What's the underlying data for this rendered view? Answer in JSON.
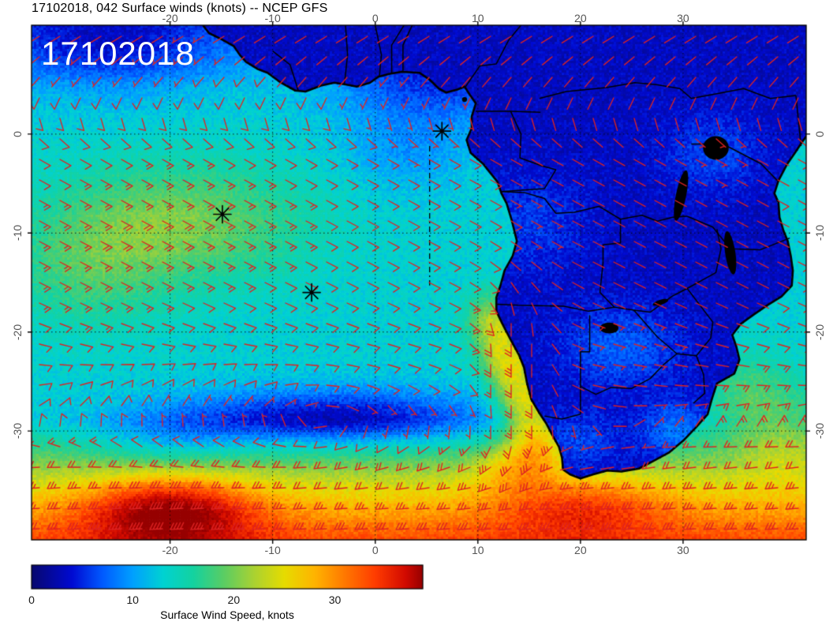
{
  "title": "17102018, 042 Surface winds (knots) -- NCEP GFS",
  "date_stamp": "17102018",
  "map": {
    "lon_min": -33.5,
    "lon_max": 42.0,
    "lat_min": -41.0,
    "lat_max": 11.0,
    "lon_ticks": [
      -20,
      -10,
      0,
      10,
      20,
      30
    ],
    "lat_ticks": [
      0,
      -10,
      -20,
      -30
    ],
    "markers": [
      {
        "name": "sao-tome-station",
        "lon": 6.5,
        "lat": 0.3
      },
      {
        "name": "ascension-station",
        "lon": -14.9,
        "lat": -8.1
      },
      {
        "name": "st-helena-station",
        "lon": -6.2,
        "lat": -16.0
      }
    ],
    "track_line": {
      "lon": 5.3,
      "lat_from": -1.2,
      "lat_to": -15.3
    }
  },
  "colorbar": {
    "label": "Surface Wind Speed, knots",
    "ticks": [
      0,
      10,
      20,
      30
    ],
    "max_value": 38.7,
    "stops": [
      {
        "v": 0,
        "c": "#08086e"
      },
      {
        "v": 4,
        "c": "#000ad2"
      },
      {
        "v": 7,
        "c": "#005aff"
      },
      {
        "v": 10,
        "c": "#00a0ff"
      },
      {
        "v": 13,
        "c": "#00d2d2"
      },
      {
        "v": 16,
        "c": "#14d2a0"
      },
      {
        "v": 19,
        "c": "#5acd64"
      },
      {
        "v": 22,
        "c": "#aad232"
      },
      {
        "v": 25,
        "c": "#e6dc00"
      },
      {
        "v": 28,
        "c": "#ffb400"
      },
      {
        "v": 31,
        "c": "#ff7800"
      },
      {
        "v": 34,
        "c": "#ff3c00"
      },
      {
        "v": 37,
        "c": "#d20a00"
      },
      {
        "v": 40,
        "c": "#960000"
      }
    ]
  },
  "colors": {
    "barb": "#dd2222",
    "coast": "#000000",
    "axis_label": "#555555",
    "stamp": "#ffffff"
  },
  "chart_data": {
    "type": "heatmap",
    "title": "17102018, 042 Surface winds (knots) -- NCEP GFS",
    "x_ticks": [
      -20,
      -10,
      0,
      10,
      20,
      30
    ],
    "y_ticks": [
      0,
      -10,
      -20,
      -30
    ],
    "colorbar_label": "Surface Wind Speed, knots",
    "colorbar_ticks": [
      0,
      10,
      20,
      30
    ],
    "overlay": "red wind barbs",
    "legend_position": "bottom"
  }
}
